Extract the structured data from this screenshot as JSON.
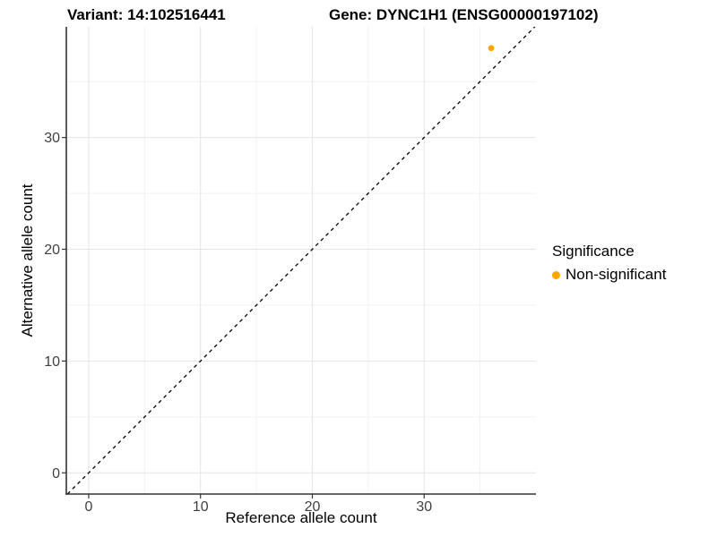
{
  "chart_data": {
    "type": "scatter",
    "title_left": "Variant: 14:102516441",
    "title_right": "Gene: DYNC1H1 (ENSG00000197102)",
    "xlabel": "Reference allele count",
    "ylabel": "Alternative allele count",
    "xlim": [
      -2,
      40
    ],
    "ylim": [
      -1.9,
      39.9
    ],
    "x_ticks": [
      0,
      10,
      20,
      30
    ],
    "y_ticks": [
      0,
      10,
      20,
      30
    ],
    "minor_x_gridlines": [
      5,
      15,
      25,
      35
    ],
    "minor_y_gridlines": [
      5,
      15,
      25,
      35
    ],
    "grid": true,
    "reference_line": {
      "kind": "identity y=x",
      "style": "dashed",
      "color": "#000000"
    },
    "series": [
      {
        "name": "Non-significant",
        "color": "#FFA500",
        "points": [
          {
            "x": 36,
            "y": 38
          }
        ]
      }
    ],
    "legend": {
      "title": "Significance",
      "position": "right",
      "entries": [
        {
          "label": "Non-significant",
          "color": "#FFA500"
        }
      ]
    }
  },
  "colors": {
    "grid_major": "#e4e4e4",
    "grid_minor": "#f1f1f1",
    "axis_line": "#333333",
    "tick_label": "#404040",
    "title": "#000000"
  }
}
